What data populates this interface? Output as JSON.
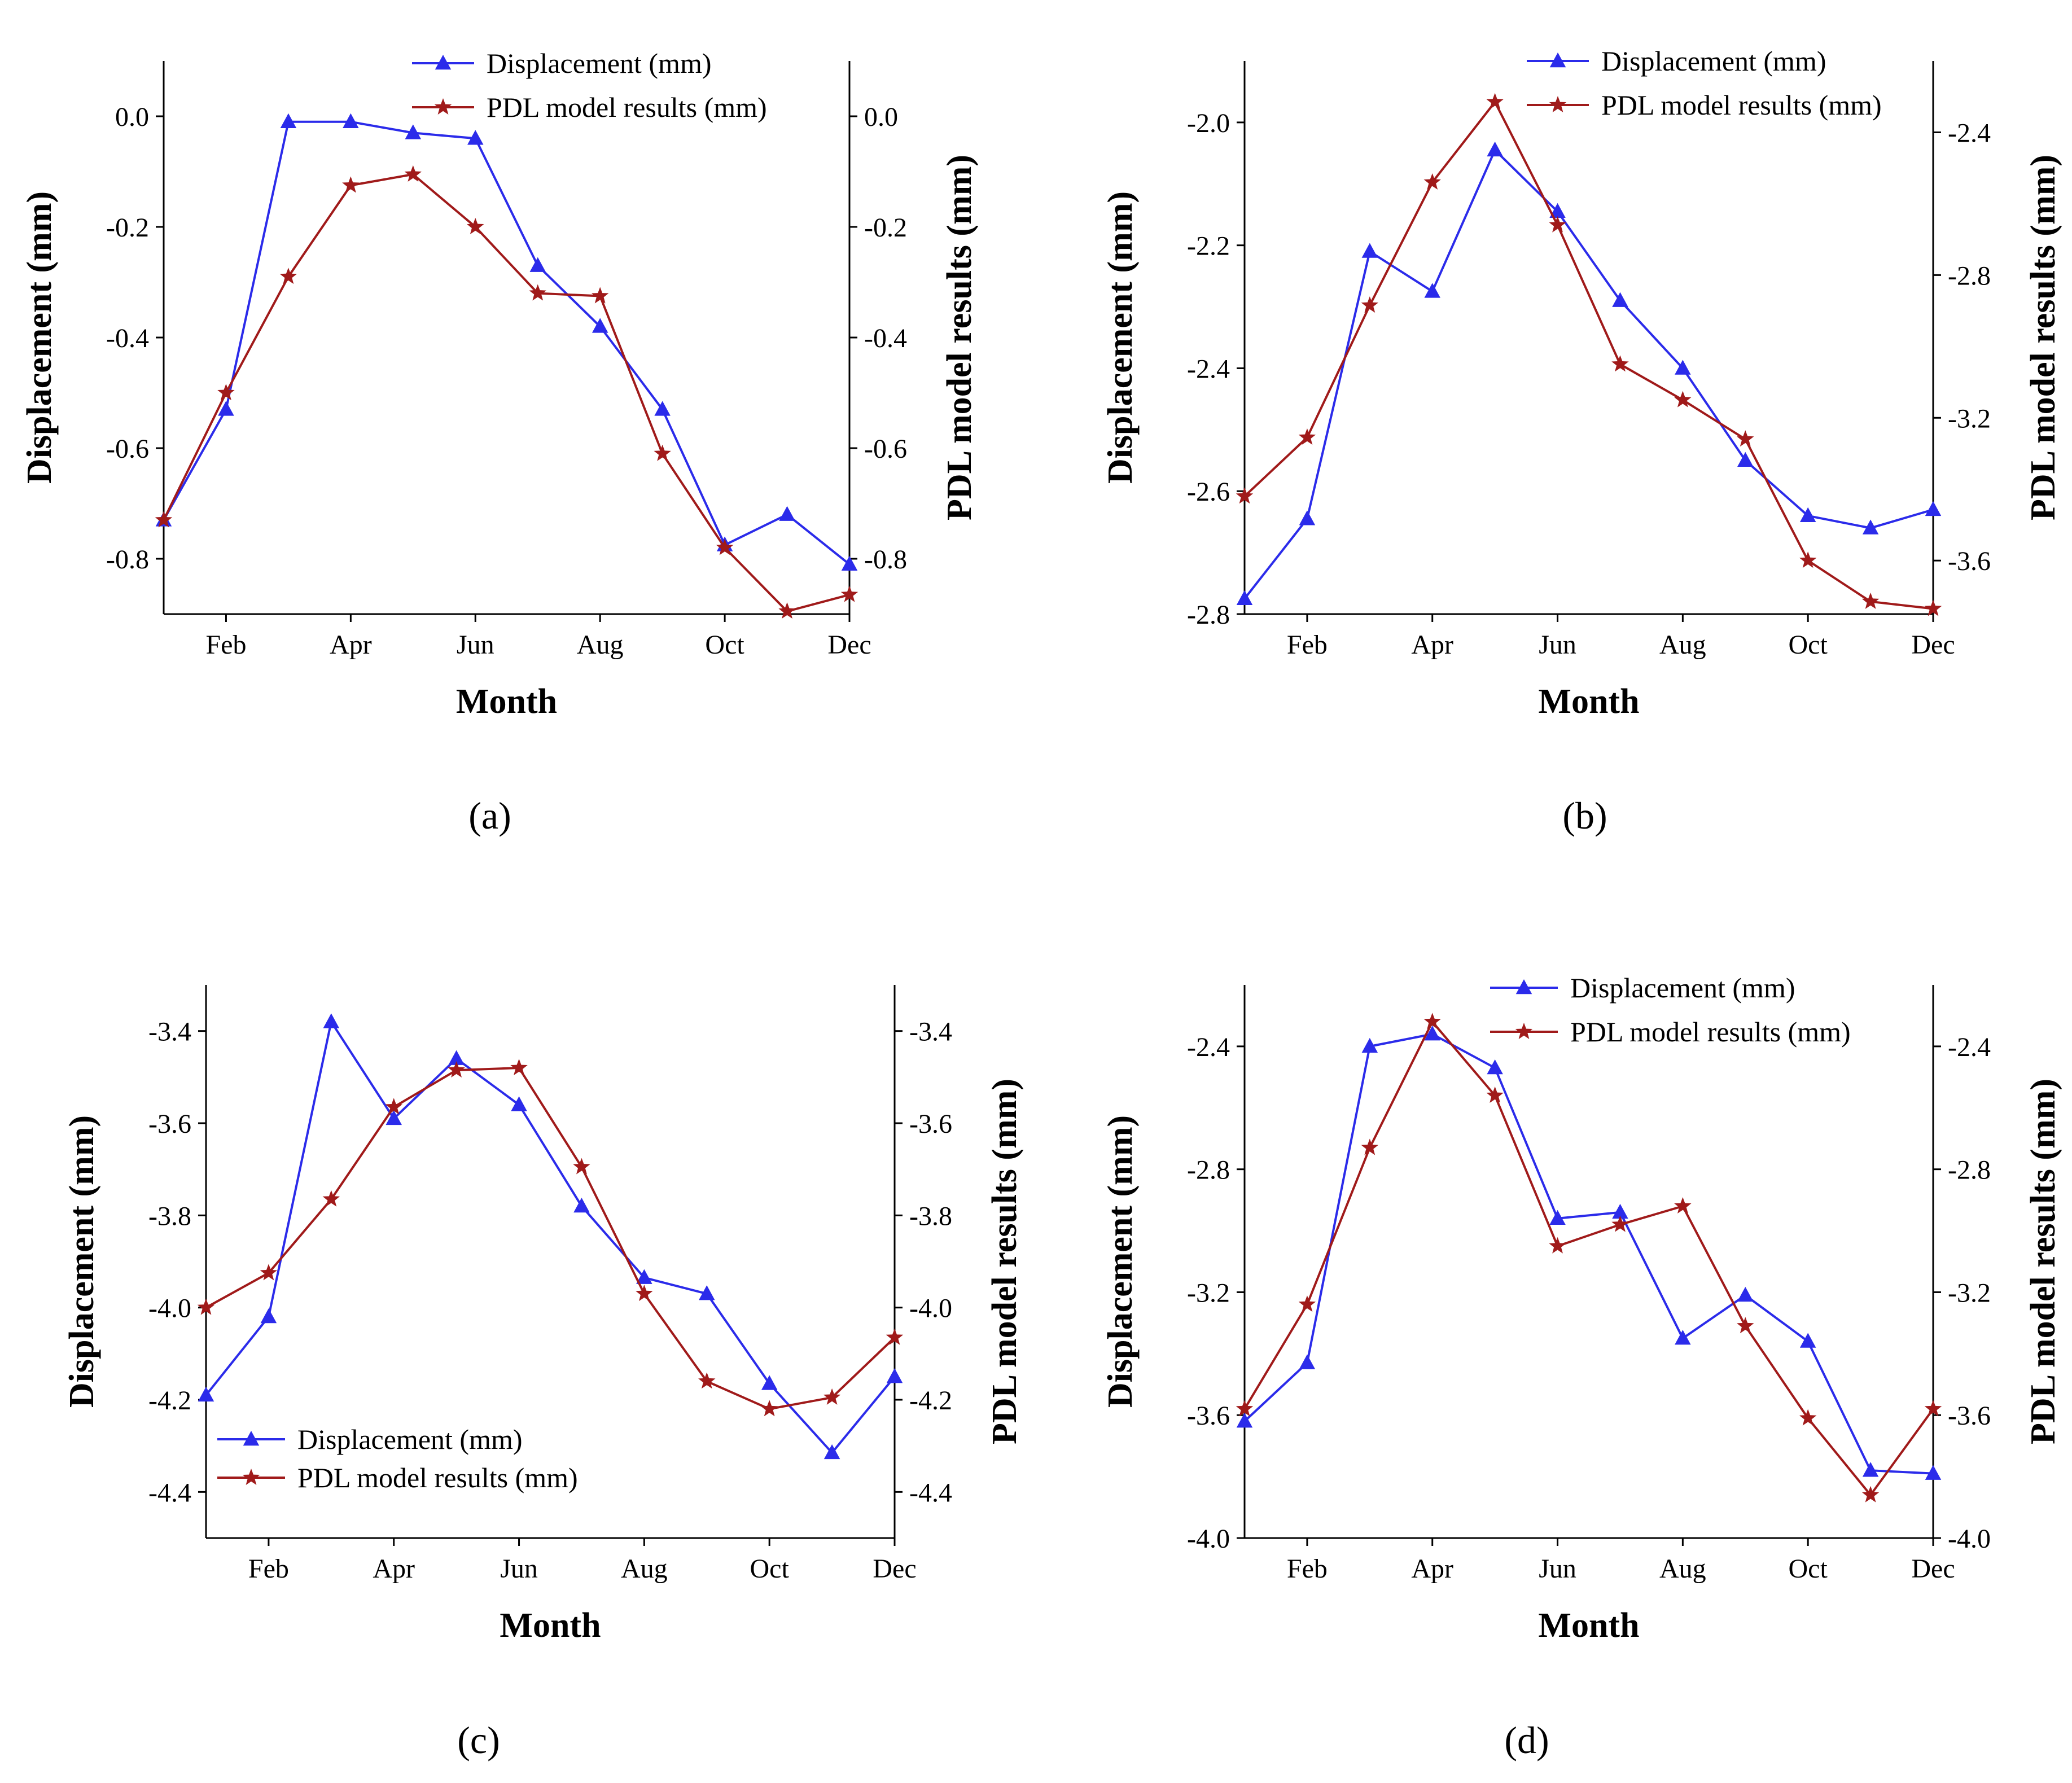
{
  "chart_data": [
    {
      "type": "line",
      "panel_label": "(a)",
      "x": [
        "Jan",
        "Feb",
        "Mar",
        "Apr",
        "May",
        "Jun",
        "Jul",
        "Aug",
        "Sep",
        "Oct",
        "Nov",
        "Dec"
      ],
      "xticks": [
        "Feb",
        "Apr",
        "Jun",
        "Aug",
        "Oct",
        "Dec"
      ],
      "xlabel": "Month",
      "ylabel_left": "Displacement (mm)",
      "ylabel_right": "PDL model results (mm)",
      "ylim_left": [
        -0.9,
        0.1
      ],
      "ylim_right": [
        -0.9,
        0.1
      ],
      "yticks_left": [
        0.0,
        -0.2,
        -0.4,
        -0.6,
        -0.8
      ],
      "yticks_right": [
        0.0,
        -0.2,
        -0.4,
        -0.6,
        -0.8
      ],
      "tick_decimals": 1,
      "legend_position": "top-center",
      "series": [
        {
          "name": "Displacement (mm)",
          "axis": "left",
          "color": "#2b2bea",
          "marker": "triangle",
          "values": [
            -0.73,
            -0.53,
            -0.01,
            -0.01,
            -0.03,
            -0.04,
            -0.27,
            -0.38,
            -0.53,
            -0.775,
            -0.72,
            -0.81
          ]
        },
        {
          "name": "PDL model results (mm)",
          "axis": "right",
          "color": "#a01a1a",
          "marker": "star",
          "values": [
            -0.73,
            -0.5,
            -0.29,
            -0.125,
            -0.105,
            -0.2,
            -0.32,
            -0.325,
            -0.61,
            -0.78,
            -0.895,
            -0.865
          ]
        }
      ]
    },
    {
      "type": "line",
      "panel_label": "(b)",
      "x": [
        "Jan",
        "Feb",
        "Mar",
        "Apr",
        "May",
        "Jun",
        "Jul",
        "Aug",
        "Sep",
        "Oct",
        "Nov",
        "Dec"
      ],
      "xticks": [
        "Feb",
        "Apr",
        "Jun",
        "Aug",
        "Oct",
        "Dec"
      ],
      "xlabel": "Month",
      "ylabel_left": "Displacement (mm)",
      "ylabel_right": "PDL model results (mm)",
      "ylim_left": [
        -2.8,
        -1.9
      ],
      "ylim_right": [
        -3.75,
        -2.2
      ],
      "yticks_left": [
        -2.0,
        -2.2,
        -2.4,
        -2.6,
        -2.8
      ],
      "yticks_right": [
        -2.4,
        -2.8,
        -3.2,
        -3.6
      ],
      "tick_decimals": 1,
      "legend_position": "top-center",
      "series": [
        {
          "name": "Displacement (mm)",
          "axis": "left",
          "color": "#2b2bea",
          "marker": "triangle",
          "values": [
            -2.775,
            -2.645,
            -2.21,
            -2.275,
            -2.045,
            -2.145,
            -2.29,
            -2.4,
            -2.55,
            -2.64,
            -2.66,
            -2.63
          ]
        },
        {
          "name": "PDL model results (mm)",
          "axis": "right",
          "color": "#a01a1a",
          "marker": "star",
          "values": [
            -3.42,
            -3.255,
            -2.885,
            -2.54,
            -2.315,
            -2.66,
            -3.05,
            -3.15,
            -3.26,
            -3.6,
            -3.715,
            -3.735
          ]
        }
      ]
    },
    {
      "type": "line",
      "panel_label": "(c)",
      "x": [
        "Jan",
        "Feb",
        "Mar",
        "Apr",
        "May",
        "Jun",
        "Jul",
        "Aug",
        "Sep",
        "Oct",
        "Nov",
        "Dec"
      ],
      "xticks": [
        "Feb",
        "Apr",
        "Jun",
        "Aug",
        "Oct",
        "Dec"
      ],
      "xlabel": "Month",
      "ylabel_left": "Displacement (mm)",
      "ylabel_right": "PDL model results (mm)",
      "ylim_left": [
        -4.5,
        -3.3
      ],
      "ylim_right": [
        -4.5,
        -3.3
      ],
      "yticks_left": [
        -3.4,
        -3.6,
        -3.8,
        -4.0,
        -4.2,
        -4.4
      ],
      "yticks_right": [
        -3.4,
        -3.6,
        -3.8,
        -4.0,
        -4.2,
        -4.4
      ],
      "tick_decimals": 1,
      "legend_position": "bottom-left",
      "series": [
        {
          "name": "Displacement (mm)",
          "axis": "left",
          "color": "#2b2bea",
          "marker": "triangle",
          "values": [
            -4.19,
            -4.02,
            -3.38,
            -3.59,
            -3.46,
            -3.56,
            -3.78,
            -3.935,
            -3.97,
            -4.165,
            -4.315,
            -4.15
          ]
        },
        {
          "name": "PDL model results (mm)",
          "axis": "right",
          "color": "#a01a1a",
          "marker": "star",
          "values": [
            -4.0,
            -3.925,
            -3.765,
            -3.565,
            -3.485,
            -3.48,
            -3.695,
            -3.97,
            -4.16,
            -4.22,
            -4.195,
            -4.065
          ]
        }
      ]
    },
    {
      "type": "line",
      "panel_label": "(d)",
      "x": [
        "Jan",
        "Feb",
        "Mar",
        "Apr",
        "May",
        "Jun",
        "Jul",
        "Aug",
        "Sep",
        "Oct",
        "Nov",
        "Dec"
      ],
      "xticks": [
        "Feb",
        "Apr",
        "Jun",
        "Aug",
        "Oct",
        "Dec"
      ],
      "xlabel": "Month",
      "ylabel_left": "Displacement (mm)",
      "ylabel_right": "PDL model results (mm)",
      "ylim_left": [
        -4.0,
        -2.2
      ],
      "ylim_right": [
        -4.0,
        -2.2
      ],
      "yticks_left": [
        -2.4,
        -2.8,
        -3.2,
        -3.6,
        -4.0
      ],
      "yticks_right": [
        -2.4,
        -2.8,
        -3.2,
        -3.6,
        -4.0
      ],
      "tick_decimals": 1,
      "legend_position": "top-center",
      "series": [
        {
          "name": "Displacement (mm)",
          "axis": "left",
          "color": "#2b2bea",
          "marker": "triangle",
          "values": [
            -3.62,
            -3.43,
            -2.4,
            -2.36,
            -2.47,
            -2.96,
            -2.94,
            -3.35,
            -3.21,
            -3.36,
            -3.78,
            -3.79
          ]
        },
        {
          "name": "PDL model results (mm)",
          "axis": "right",
          "color": "#a01a1a",
          "marker": "star",
          "values": [
            -3.58,
            -3.24,
            -2.73,
            -2.32,
            -2.56,
            -3.05,
            -2.98,
            -2.92,
            -3.31,
            -3.61,
            -3.86,
            -3.58
          ]
        }
      ]
    }
  ]
}
